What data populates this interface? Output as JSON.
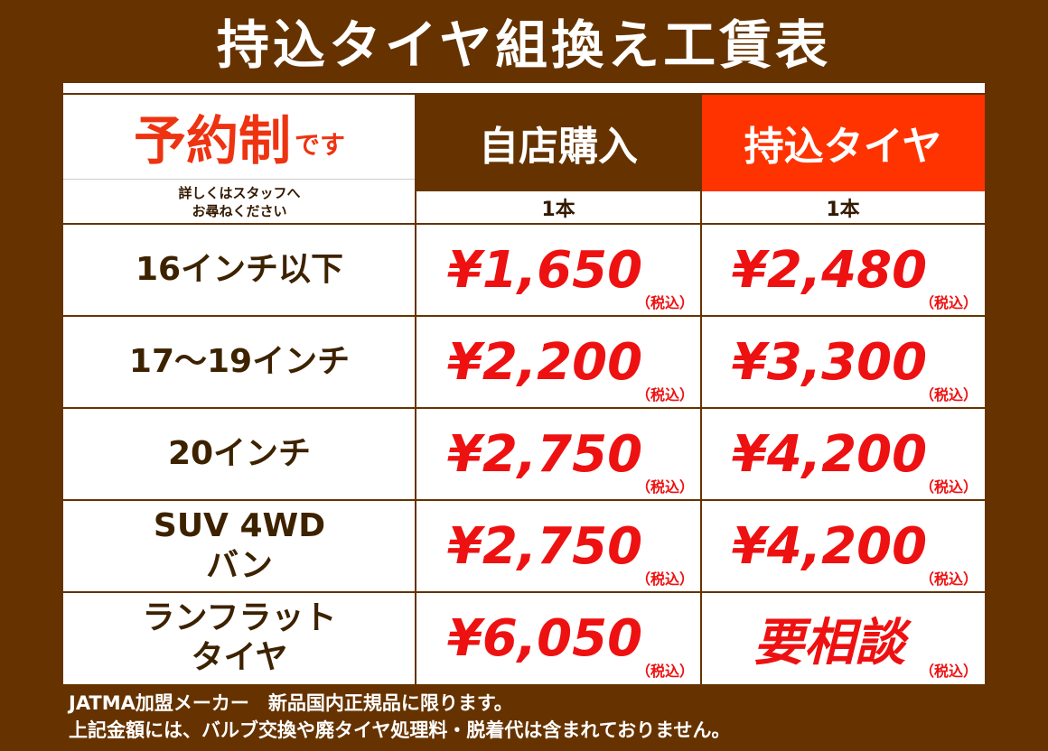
{
  "title": "持込タイヤ組換え工賃表",
  "header": {
    "reservation": "予約制",
    "reservation_suffix": "です",
    "note_line1": "詳しくはスタッフへ",
    "note_line2": "お尋ねください",
    "col_own": "自店購入",
    "col_carry": "持込タイヤ",
    "unit_own": "1本",
    "unit_carry": "1本"
  },
  "tax_label": "（税込）",
  "rows": [
    {
      "label1": "16インチ以下",
      "label2": "",
      "own": "¥1,650",
      "carry": "¥2,480"
    },
    {
      "label1": "17～19インチ",
      "label2": "",
      "own": "¥2,200",
      "carry": "¥3,300"
    },
    {
      "label1": "20インチ",
      "label2": "",
      "own": "¥2,750",
      "carry": "¥4,200"
    },
    {
      "label1": "SUV 4WD",
      "label2": "バン",
      "own": "¥2,750",
      "carry": "¥4,200"
    },
    {
      "label1": "ランフラット",
      "label2": "タイヤ",
      "own": "¥6,050",
      "carry": "要相談"
    }
  ],
  "footer": {
    "line1": "JATMA加盟メーカー　新品国内正規品に限ります。",
    "line2": "上記金額には、バルブ交換や廃タイヤ処理料・脱着代は含まれておりません。"
  },
  "colors": {
    "background": "#663300",
    "accent": "#ff3300",
    "price": "#ee1111"
  }
}
